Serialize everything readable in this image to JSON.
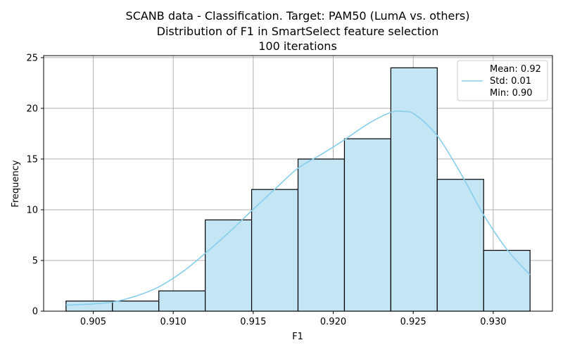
{
  "chart_data": {
    "type": "bar",
    "title_lines": [
      "SCANB data - Classification. Target: PAM50 (LumA vs. others)",
      "Distribution of F1 in SmartSelect feature selection",
      "100 iterations"
    ],
    "xlabel": "F1",
    "ylabel": "Frequency",
    "xlim": [
      0.9019,
      0.9337
    ],
    "ylim": [
      0,
      25.2
    ],
    "x_ticks": [
      0.905,
      0.91,
      0.915,
      0.92,
      0.925,
      0.93
    ],
    "x_tick_labels": [
      "0.905",
      "0.910",
      "0.915",
      "0.920",
      "0.925",
      "0.930"
    ],
    "y_ticks": [
      0,
      5,
      10,
      15,
      20,
      25
    ],
    "y_tick_labels": [
      "0",
      "5",
      "10",
      "15",
      "20",
      "25"
    ],
    "grid": true,
    "bins": [
      {
        "x0": 0.9033,
        "x1": 0.9062,
        "count": 1
      },
      {
        "x0": 0.9062,
        "x1": 0.9091,
        "count": 1
      },
      {
        "x0": 0.9091,
        "x1": 0.912,
        "count": 2
      },
      {
        "x0": 0.912,
        "x1": 0.9149,
        "count": 9
      },
      {
        "x0": 0.9149,
        "x1": 0.9178,
        "count": 12
      },
      {
        "x0": 0.9178,
        "x1": 0.9207,
        "count": 15
      },
      {
        "x0": 0.9207,
        "x1": 0.9236,
        "count": 17
      },
      {
        "x0": 0.9236,
        "x1": 0.9265,
        "count": 24
      },
      {
        "x0": 0.9265,
        "x1": 0.9294,
        "count": 13
      },
      {
        "x0": 0.9294,
        "x1": 0.9323,
        "count": 6
      }
    ],
    "kde_curve": {
      "x": [
        0.9033,
        0.9048,
        0.9062,
        0.9077,
        0.9091,
        0.9106,
        0.912,
        0.9135,
        0.9149,
        0.9164,
        0.9178,
        0.9193,
        0.9207,
        0.9222,
        0.9236,
        0.9243,
        0.9251,
        0.9265,
        0.928,
        0.9294,
        0.9309,
        0.9323
      ],
      "y": [
        0.6,
        0.7,
        0.9,
        1.5,
        2.4,
        3.9,
        5.7,
        7.8,
        9.9,
        12.1,
        14.1,
        15.5,
        16.9,
        18.5,
        19.6,
        19.7,
        19.4,
        17.3,
        13.5,
        9.5,
        6.0,
        3.6
      ]
    },
    "colors": {
      "bar_fill": "#c3e5f4",
      "bar_edge": "#000000",
      "kde_line": "#87ceeb",
      "grid": "#b0b0b0"
    },
    "legend": {
      "placement": "top-right",
      "entries": [
        "Mean: 0.92",
        "Std: 0.01",
        "Min: 0.90"
      ]
    }
  }
}
